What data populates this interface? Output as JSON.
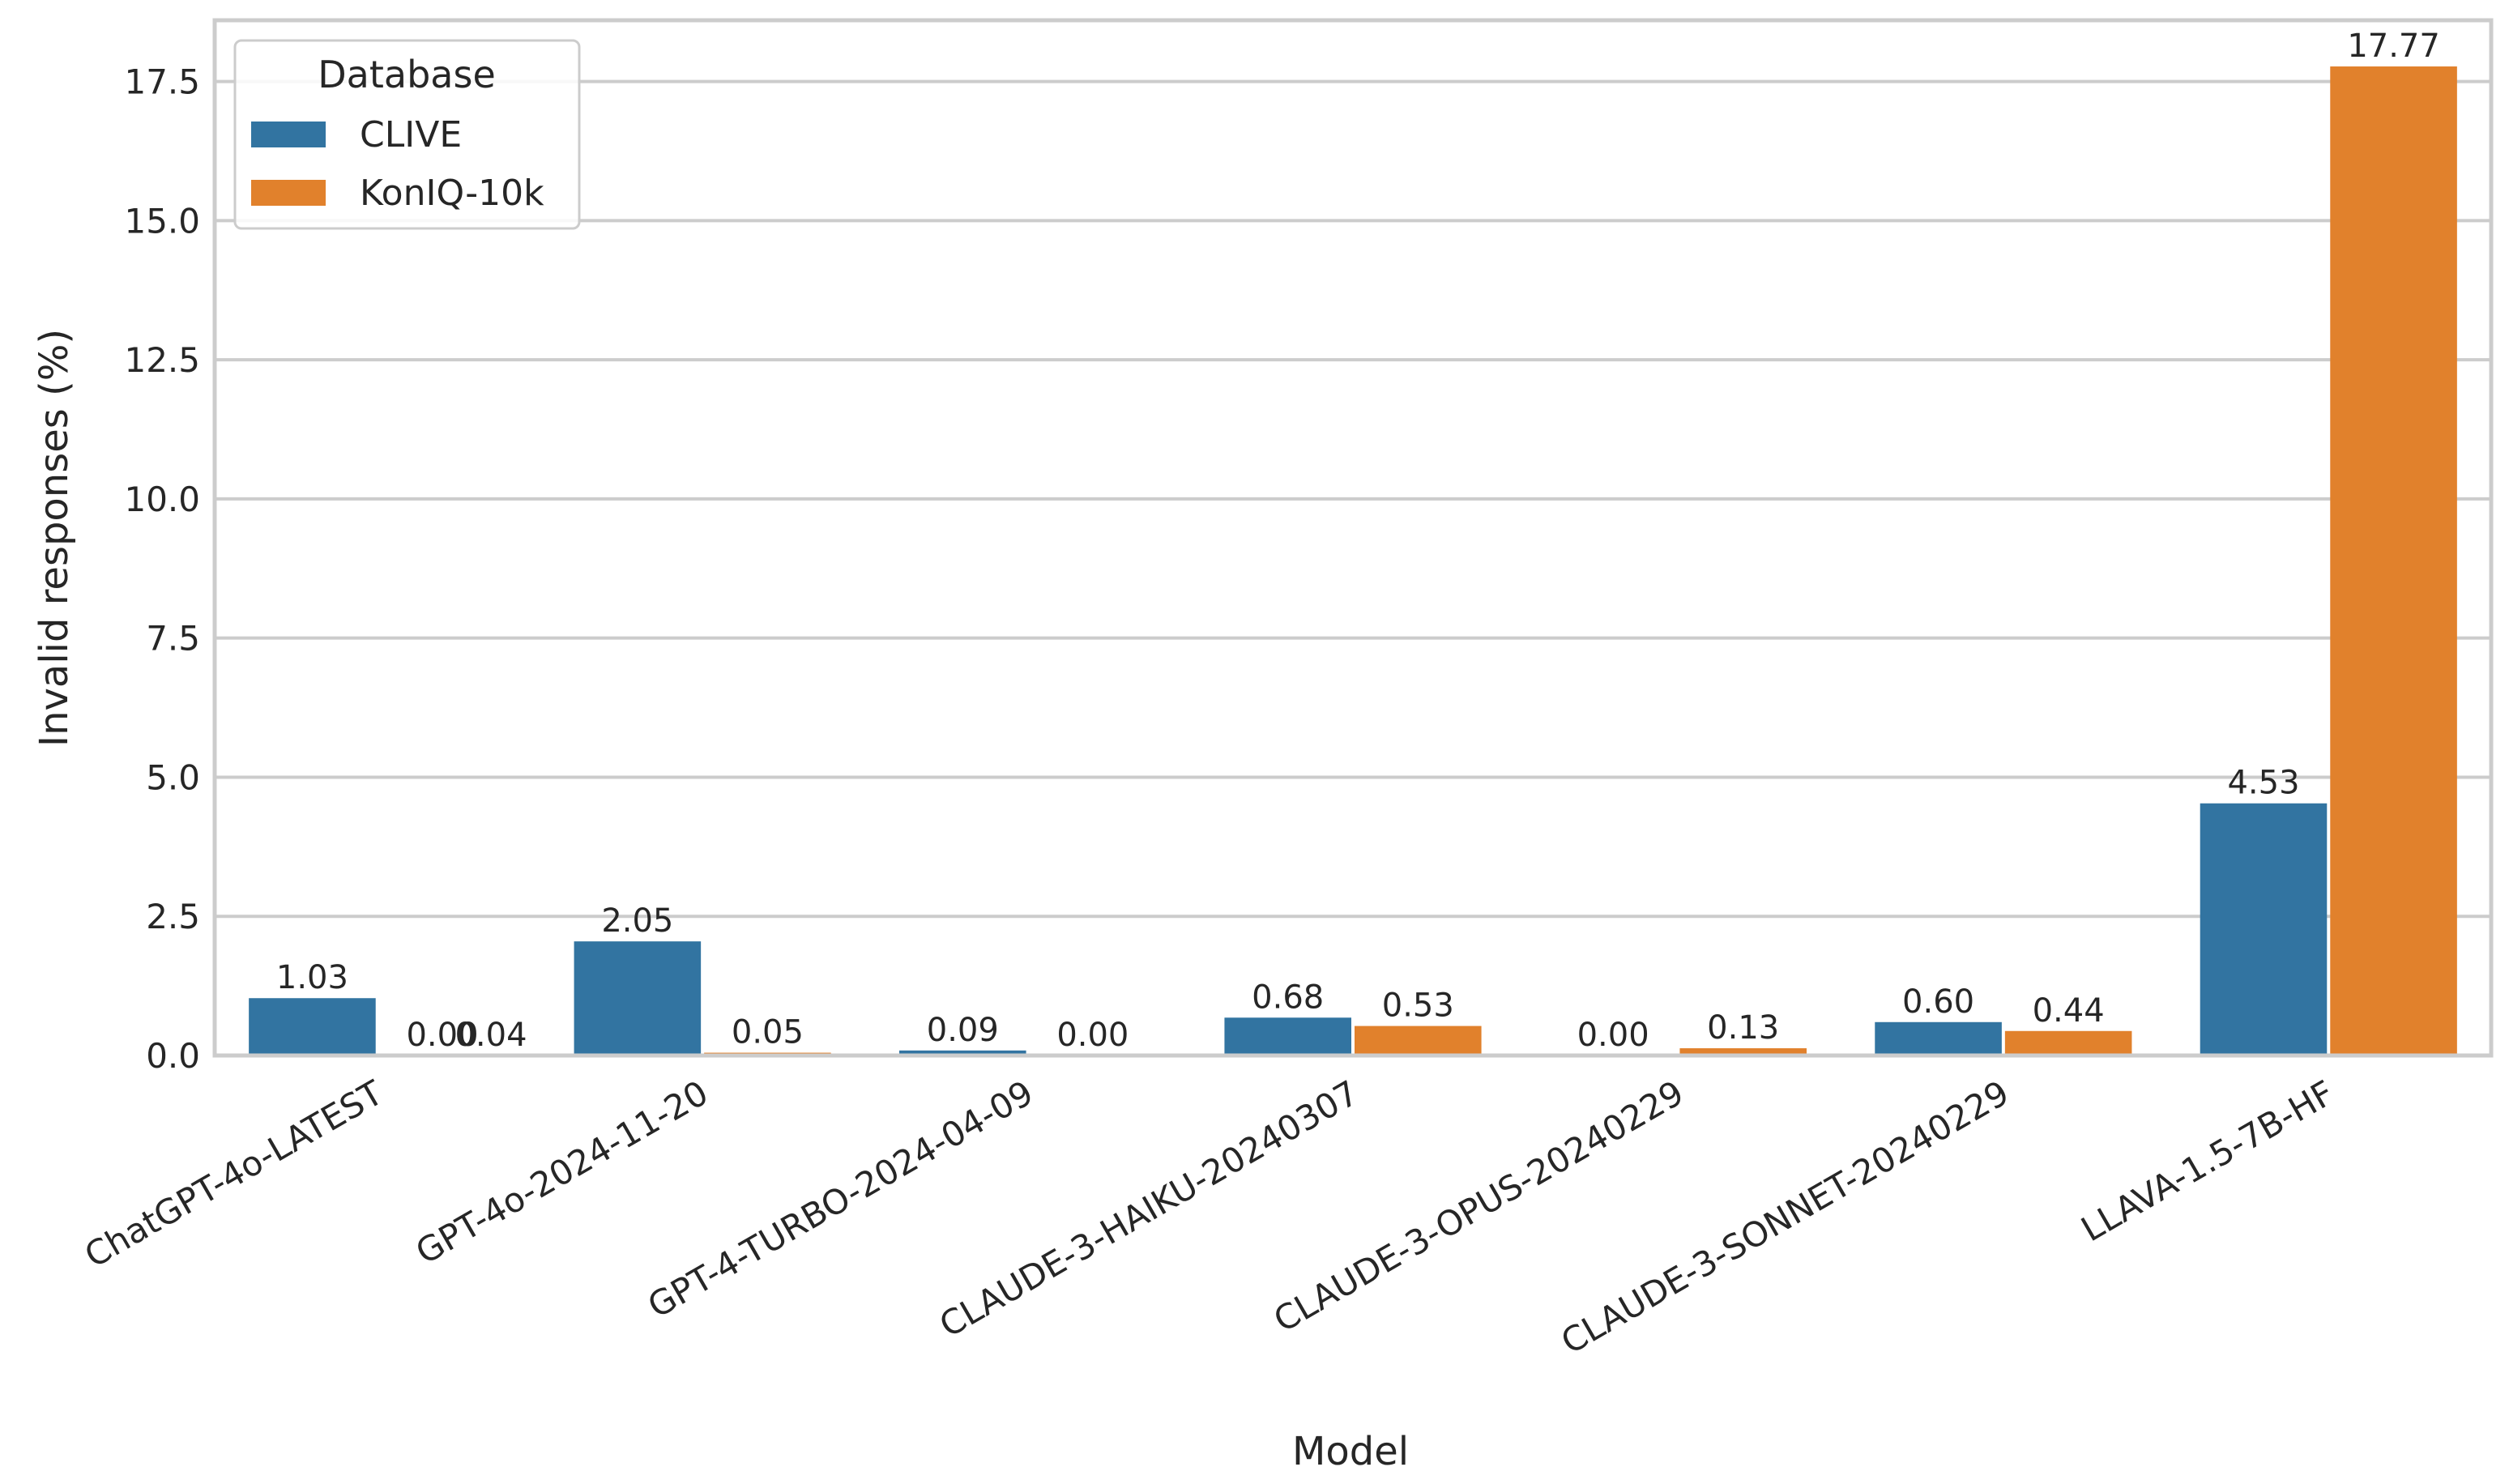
{
  "chart_data": {
    "type": "bar",
    "xlabel": "Model",
    "ylabel": "Invalid responses (%)",
    "ylim": [
      0,
      18.6
    ],
    "yticks": [
      "0.0",
      "2.5",
      "5.0",
      "7.5",
      "10.0",
      "12.5",
      "15.0",
      "17.5"
    ],
    "grid": true,
    "legend_position": "top-left",
    "legend_title": "Database",
    "categories": [
      "ChatGPT-4o-LATEST",
      "GPT-4o-2024-11-20",
      "GPT-4-TURBO-2024-04-09",
      "CLAUDE-3-HAIKU-20240307",
      "CLAUDE-3-OPUS-20240229",
      "CLAUDE-3-SONNET-20240229",
      "LLAVA-1.5-7B-HF"
    ],
    "series": [
      {
        "name": "CLIVE",
        "color": "#3274a1",
        "values": [
          1.03,
          2.05,
          0.09,
          0.68,
          0.0,
          0.6,
          4.53
        ],
        "labels": [
          "1.03",
          "2.05",
          "0.09",
          "0.68",
          "0.00",
          "0.60",
          "4.53"
        ]
      },
      {
        "name": "KonIQ-10k",
        "color": "#e1812c",
        "values": [
          0.0,
          0.05,
          0.0,
          0.53,
          0.13,
          0.44,
          17.77
        ],
        "labels": [
          "0.00",
          "0.05",
          "0.00",
          "0.53",
          "0.13",
          "0.44",
          "17.77"
        ]
      }
    ],
    "extra_labels": [
      "0.04"
    ]
  }
}
